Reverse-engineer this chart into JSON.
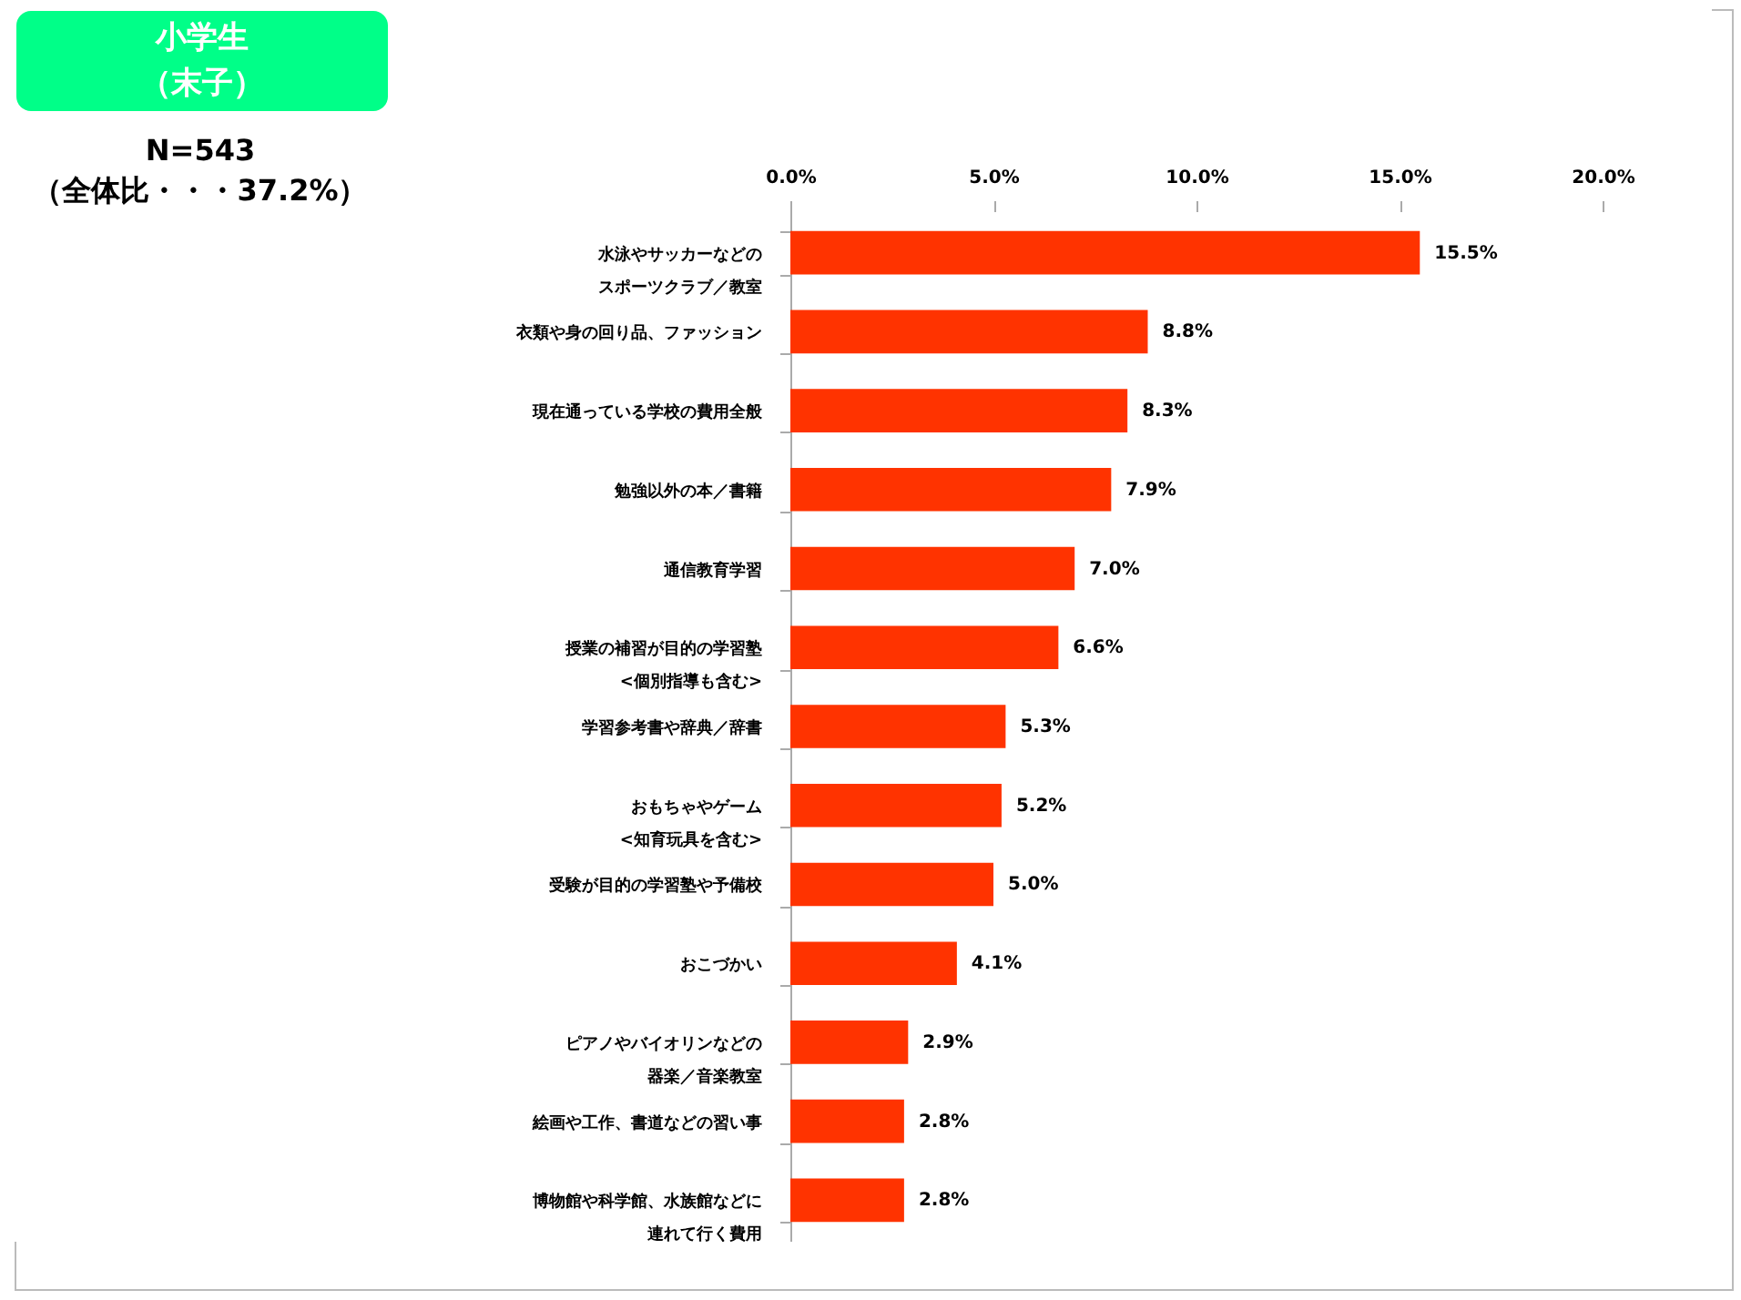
{
  "chart_data": {
    "type": "bar",
    "orientation": "horizontal",
    "title": "小学生（末子）",
    "subtitle": "N=543\n（全体比・・・37.2%）",
    "categories": [
      "水泳やサッカーなどのスポーツクラブ／教室",
      "衣類や身の回り品、ファッション",
      "現在通っている学校の費用全般",
      "勉強以外の本／書籍",
      "通信教育学習",
      "授業の補習が目的の学習塾<個別指導も含む>",
      "学習参考書や辞典／辞書",
      "おもちゃやゲーム<知育玩具を含む>",
      "受験が目的の学習塾や予備校",
      "おこづかい",
      "ピアノやバイオリンなどの器楽／音楽教室",
      "絵画や工作、書道などの習い事",
      "博物館や科学館、水族館などに連れて行く費用"
    ],
    "values": [
      15.5,
      8.8,
      8.3,
      7.9,
      7.0,
      6.6,
      5.3,
      5.2,
      5.0,
      4.1,
      2.9,
      2.8,
      2.8
    ],
    "value_labels": [
      "15.5%",
      "8.8%",
      "8.3%",
      "7.9%",
      "7.0%",
      "6.6%",
      "5.3%",
      "5.2%",
      "5.0%",
      "4.1%",
      "2.9%",
      "2.8%",
      "2.8%"
    ],
    "color": "#ff3300",
    "xlim": [
      0,
      20
    ],
    "xticks": [
      {
        "value": 0,
        "label": "0.0%"
      },
      {
        "value": 5,
        "label": "5.0%"
      },
      {
        "value": 10,
        "label": "10.0%"
      },
      {
        "value": 15,
        "label": "15.0%"
      },
      {
        "value": 20,
        "label": "20.0%"
      }
    ],
    "grid": false
  }
}
